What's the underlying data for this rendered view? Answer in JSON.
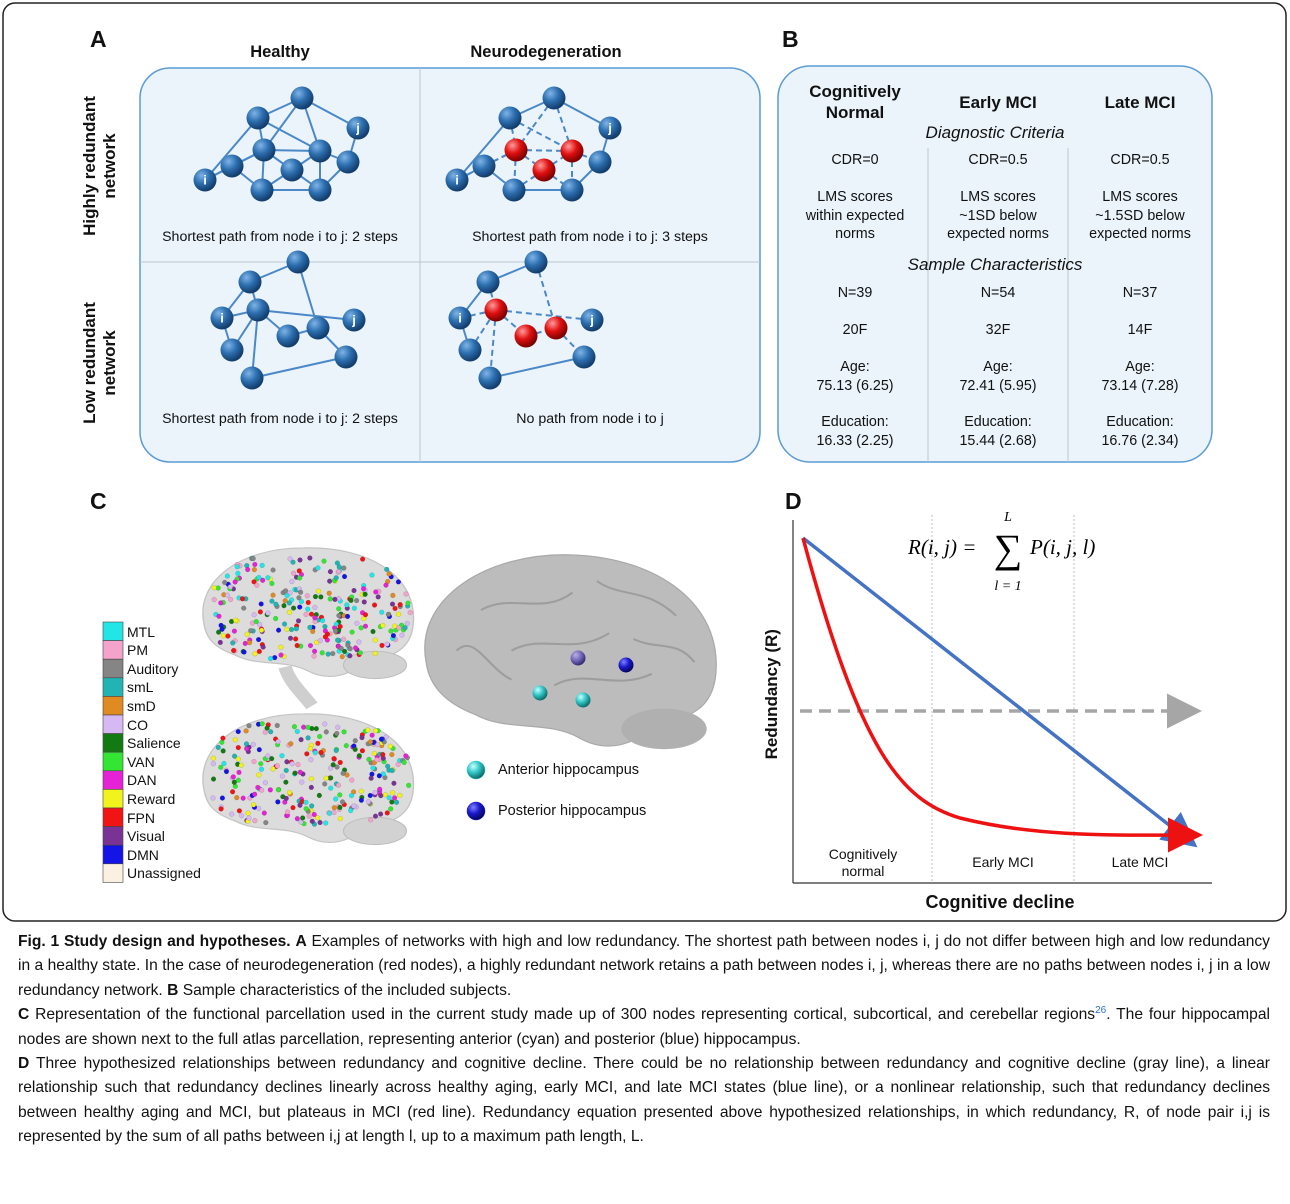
{
  "panel_a": {
    "label": "A",
    "columns": [
      "Healthy",
      "Neurodegeneration"
    ],
    "rows": [
      "Highly redundant\nnetwork",
      "Low redundant\nnetwork"
    ],
    "node_labels": [
      "i",
      "j"
    ],
    "captions": [
      [
        "Shortest path from node i to j: 2 steps",
        "Shortest path from node i to j: 3 steps"
      ],
      [
        "Shortest path from node i to j: 2 steps",
        "No path from node i to j"
      ]
    ]
  },
  "panel_b": {
    "label": "B",
    "headers": [
      "Cognitively\nNormal",
      "Early MCI",
      "Late MCI"
    ],
    "sections": [
      {
        "title": "Diagnostic Criteria",
        "rows": [
          [
            "CDR=0",
            "CDR=0.5",
            "CDR=0.5"
          ],
          [
            "LMS scores\nwithin expected\nnorms",
            "LMS scores\n~1SD below\nexpected norms",
            "LMS scores\n~1.5SD below\nexpected norms"
          ]
        ]
      },
      {
        "title": "Sample Characteristics",
        "rows": [
          [
            "N=39",
            "N=54",
            "N=37"
          ],
          [
            "20F",
            "32F",
            "14F"
          ],
          [
            "Age:\n75.13 (6.25)",
            "Age:\n72.41 (5.95)",
            "Age:\n73.14 (7.28)"
          ],
          [
            "Education:\n16.33 (2.25)",
            "Education:\n15.44 (2.68)",
            "Education:\n16.76 (2.34)"
          ]
        ]
      }
    ]
  },
  "panel_c": {
    "label": "C",
    "legend": [
      {
        "name": "MTL",
        "color": "#22e6e6"
      },
      {
        "name": "PM",
        "color": "#f4a3cc"
      },
      {
        "name": "Auditory",
        "color": "#858585"
      },
      {
        "name": "smL",
        "color": "#22b3b3"
      },
      {
        "name": "smD",
        "color": "#e08a22"
      },
      {
        "name": "CO",
        "color": "#d6b8f2"
      },
      {
        "name": "Salience",
        "color": "#137a13"
      },
      {
        "name": "VAN",
        "color": "#33e633"
      },
      {
        "name": "DAN",
        "color": "#e622d6"
      },
      {
        "name": "Reward",
        "color": "#f2f21c"
      },
      {
        "name": "FPN",
        "color": "#f01414"
      },
      {
        "name": "Visual",
        "color": "#7a3394"
      },
      {
        "name": "DMN",
        "color": "#1414e6"
      },
      {
        "name": "Unassigned",
        "color": "#fbf1e3"
      }
    ],
    "hippocampus": [
      {
        "name": "Anterior hippocampus",
        "color": "#33cccc"
      },
      {
        "name": "Posterior hippocampus",
        "color": "#1a1acc"
      }
    ]
  },
  "panel_d": {
    "label": "D",
    "equation": {
      "lhs": "R(i, j) =",
      "operator": "∑",
      "upper": "L",
      "lower": "l = 1",
      "term": "P(i, j, l)"
    },
    "y_label": "Redundancy (R)",
    "x_label": "Cognitive decline",
    "stages": [
      "Cognitively\nnormal",
      "Early MCI",
      "Late MCI"
    ]
  },
  "caption": {
    "title": "Fig. 1 Study design and hypotheses.",
    "parts": [
      {
        "label": "A",
        "text": "Examples of networks with high and low redundancy. The shortest path between nodes i, j do not differ between high and low redundancy in a healthy state. In the case of neurodegeneration (red nodes), a highly redundant network retains a path between nodes i, j, whereas there are no paths between nodes i, j in a low redundancy network."
      },
      {
        "label": "B",
        "text": "Sample characteristics of the included subjects."
      },
      {
        "label": "C",
        "text": "Representation of the functional parcellation used in the current study made up of 300 nodes representing cortical, subcortical, and cerebellar regions",
        "ref": "26",
        "text_after": ". The four hippocampal nodes are shown next to the full atlas parcellation, representing anterior (cyan) and posterior (blue) hippocampus."
      },
      {
        "label": "D",
        "text": "Three hypothesized relationships between redundancy and cognitive decline. There could be no relationship between redundancy and cognitive decline (gray line), a linear relationship such that redundancy declines linearly across healthy aging, early MCI, and late MCI states (blue line), or a nonlinear relationship, such that redundancy declines between healthy aging and MCI, but plateaus in MCI (red line). Redundancy equation presented above hypothesized relationships, in which redundancy, R, of node pair i,j is represented by the sum of all paths between i,j at length l, up to a maximum path length, L."
      }
    ]
  }
}
